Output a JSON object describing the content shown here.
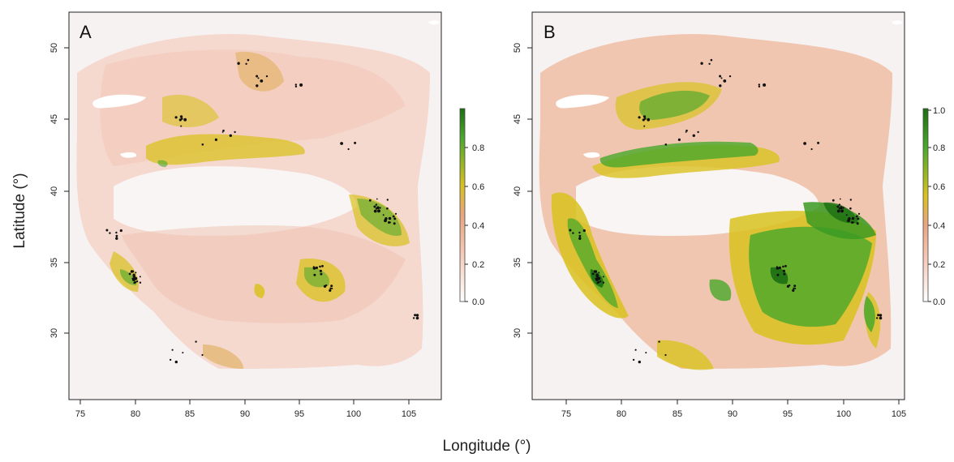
{
  "figure": {
    "xlabel": "Longitude (°)",
    "ylabel": "Latitude (°)"
  },
  "axes": {
    "x_ticks": [
      "75",
      "80",
      "85",
      "90",
      "95",
      "100",
      "105"
    ],
    "y_ticks": [
      "30",
      "35",
      "40",
      "45",
      "50"
    ]
  },
  "panels": [
    {
      "id": "A",
      "letter": "A",
      "colorbar_ticks": [
        "0.0",
        "0.2",
        "0.4",
        "0.6",
        "0.8"
      ],
      "suitability_scale": 0.55
    },
    {
      "id": "B",
      "letter": "B",
      "colorbar_ticks": [
        "0.0",
        "0.2",
        "0.4",
        "0.6",
        "0.8",
        "1.0"
      ],
      "suitability_scale": 1.0
    }
  ],
  "colors": {
    "scale_low": "#ffffff",
    "scale_mid_low": "#f5cab8",
    "scale_mid": "#e8a57f",
    "scale_mid_high": "#d9c21f",
    "scale_high": "#4aa82a",
    "scale_top": "#1b6e12",
    "occurrence_points": "#111111",
    "lakes": "#ffffff"
  }
}
